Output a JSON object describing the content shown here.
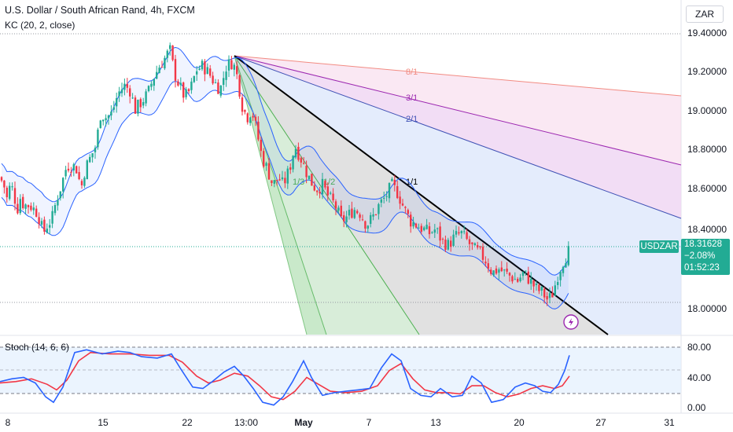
{
  "title": "U.S. Dollar / South African Rand, 4h, FXCM",
  "indicator_label": "KC (20, 2, close)",
  "stoch_label": "Stoch (14, 6, 6)",
  "currency": "ZAR",
  "symbol": "USDZAR",
  "last_price": "18.31628",
  "change": "−2.08%",
  "countdown": "01:52:23",
  "colors": {
    "up": "#22ab94",
    "down": "#f23645",
    "keltner": "#2962ff",
    "stoch_k": "#2962ff",
    "stoch_d": "#f23645",
    "price_tag": "#22ab94",
    "trendline": "#000000"
  },
  "chart_data": [
    {
      "type": "candlestick",
      "title": "U.S. Dollar / South African Rand, 4h, FXCM",
      "x_tick_labels": [
        "8",
        "15",
        "22",
        "13:00",
        "May",
        "7",
        "13",
        "20",
        "27",
        "31"
      ],
      "y_tick_labels": [
        "19.40000",
        "19.20000",
        "19.00000",
        "18.80000",
        "18.60000",
        "18.40000",
        "18.00000"
      ],
      "ylim": [
        17.87,
        19.55
      ],
      "annotations": [
        "8/1",
        "3/1",
        "2/1",
        "1/1",
        "1/2",
        "1/3"
      ],
      "last_value": 18.31628,
      "approx_close_path": [
        [
          0,
          18.66
        ],
        [
          5,
          18.62
        ],
        [
          9,
          18.55
        ],
        [
          13,
          18.62
        ],
        [
          16,
          18.6
        ],
        [
          22,
          18.5
        ],
        [
          26,
          18.56
        ],
        [
          30,
          18.52
        ],
        [
          38,
          18.52
        ],
        [
          43,
          18.5
        ],
        [
          48,
          18.48
        ],
        [
          55,
          18.38
        ],
        [
          60,
          18.42
        ],
        [
          66,
          18.45
        ],
        [
          72,
          18.55
        ],
        [
          78,
          18.62
        ],
        [
          85,
          18.72
        ],
        [
          92,
          18.72
        ],
        [
          98,
          18.7
        ],
        [
          103,
          18.6
        ],
        [
          108,
          18.7
        ],
        [
          115,
          18.76
        ],
        [
          122,
          18.82
        ],
        [
          128,
          18.98
        ],
        [
          135,
          18.96
        ],
        [
          142,
          18.98
        ],
        [
          150,
          19.08
        ],
        [
          158,
          19.12
        ],
        [
          165,
          19.1
        ],
        [
          172,
          19.0
        ],
        [
          180,
          19.04
        ],
        [
          188,
          19.08
        ],
        [
          195,
          19.16
        ],
        [
          203,
          19.22
        ],
        [
          210,
          19.26
        ],
        [
          216,
          19.3
        ],
        [
          222,
          19.18
        ],
        [
          228,
          19.12
        ],
        [
          235,
          19.06
        ],
        [
          242,
          19.1
        ],
        [
          250,
          19.2
        ],
        [
          258,
          19.22
        ],
        [
          266,
          19.18
        ],
        [
          272,
          19.14
        ],
        [
          280,
          19.1
        ],
        [
          288,
          19.22
        ],
        [
          296,
          19.24
        ],
        [
          302,
          19.16
        ],
        [
          308,
          19.02
        ],
        [
          314,
          18.96
        ],
        [
          320,
          19.0
        ],
        [
          326,
          18.9
        ],
        [
          333,
          18.76
        ],
        [
          340,
          18.7
        ],
        [
          347,
          18.62
        ],
        [
          354,
          18.66
        ],
        [
          360,
          18.62
        ],
        [
          368,
          18.7
        ],
        [
          375,
          18.82
        ],
        [
          382,
          18.76
        ],
        [
          388,
          18.7
        ],
        [
          395,
          18.64
        ],
        [
          402,
          18.6
        ],
        [
          410,
          18.62
        ],
        [
          418,
          18.56
        ],
        [
          426,
          18.52
        ],
        [
          434,
          18.44
        ],
        [
          441,
          18.46
        ],
        [
          450,
          18.5
        ],
        [
          458,
          18.48
        ],
        [
          466,
          18.42
        ],
        [
          474,
          18.46
        ],
        [
          482,
          18.52
        ],
        [
          490,
          18.56
        ],
        [
          498,
          18.62
        ],
        [
          506,
          18.58
        ],
        [
          514,
          18.5
        ],
        [
          522,
          18.44
        ],
        [
          530,
          18.42
        ],
        [
          538,
          18.4
        ],
        [
          546,
          18.38
        ],
        [
          554,
          18.4
        ],
        [
          562,
          18.34
        ],
        [
          570,
          18.32
        ],
        [
          578,
          18.36
        ],
        [
          586,
          18.38
        ],
        [
          594,
          18.34
        ],
        [
          602,
          18.3
        ],
        [
          610,
          18.28
        ],
        [
          618,
          18.24
        ],
        [
          626,
          18.18
        ],
        [
          634,
          18.2
        ],
        [
          642,
          18.18
        ],
        [
          650,
          18.16
        ],
        [
          658,
          18.14
        ],
        [
          666,
          18.18
        ],
        [
          674,
          18.14
        ],
        [
          682,
          18.1
        ],
        [
          690,
          18.08
        ],
        [
          697,
          18.04
        ],
        [
          703,
          18.08
        ],
        [
          710,
          18.18
        ],
        [
          716,
          18.24
        ],
        [
          722,
          18.28
        ],
        [
          726,
          18.32
        ]
      ]
    },
    {
      "type": "line",
      "title": "Stoch (14, 6, 6)",
      "y_tick_labels": [
        "80.00",
        "40.00",
        "0.00"
      ],
      "ylim": [
        0,
        100
      ],
      "series": [
        {
          "name": "%K",
          "values": [
            [
              0,
              40
            ],
            [
              15,
              44
            ],
            [
              30,
              46
            ],
            [
              45,
              38
            ],
            [
              58,
              18
            ],
            [
              68,
              10
            ],
            [
              80,
              32
            ],
            [
              95,
              82
            ],
            [
              110,
              86
            ],
            [
              130,
              80
            ],
            [
              150,
              84
            ],
            [
              165,
              82
            ],
            [
              180,
              76
            ],
            [
              200,
              74
            ],
            [
              218,
              80
            ],
            [
              230,
              58
            ],
            [
              245,
              32
            ],
            [
              258,
              30
            ],
            [
              270,
              40
            ],
            [
              285,
              54
            ],
            [
              298,
              62
            ],
            [
              310,
              48
            ],
            [
              322,
              30
            ],
            [
              334,
              10
            ],
            [
              348,
              6
            ],
            [
              360,
              18
            ],
            [
              372,
              40
            ],
            [
              386,
              70
            ],
            [
              396,
              46
            ],
            [
              410,
              20
            ],
            [
              425,
              24
            ],
            [
              440,
              26
            ],
            [
              455,
              28
            ],
            [
              470,
              30
            ],
            [
              485,
              60
            ],
            [
              498,
              80
            ],
            [
              510,
              70
            ],
            [
              522,
              30
            ],
            [
              535,
              20
            ],
            [
              548,
              18
            ],
            [
              560,
              30
            ],
            [
              575,
              18
            ],
            [
              588,
              20
            ],
            [
              600,
              48
            ],
            [
              612,
              38
            ],
            [
              625,
              10
            ],
            [
              640,
              14
            ],
            [
              655,
              32
            ],
            [
              668,
              38
            ],
            [
              680,
              34
            ],
            [
              690,
              26
            ],
            [
              700,
              24
            ],
            [
              710,
              36
            ],
            [
              718,
              56
            ],
            [
              724,
              78
            ]
          ]
        },
        {
          "name": "%D",
          "values": [
            [
              0,
              38
            ],
            [
              20,
              40
            ],
            [
              40,
              44
            ],
            [
              60,
              36
            ],
            [
              72,
              28
            ],
            [
              85,
              42
            ],
            [
              100,
              70
            ],
            [
              115,
              82
            ],
            [
              140,
              80
            ],
            [
              165,
              80
            ],
            [
              190,
              78
            ],
            [
              215,
              78
            ],
            [
              232,
              68
            ],
            [
              250,
              48
            ],
            [
              265,
              38
            ],
            [
              280,
              42
            ],
            [
              298,
              52
            ],
            [
              315,
              48
            ],
            [
              330,
              34
            ],
            [
              345,
              18
            ],
            [
              360,
              14
            ],
            [
              375,
              26
            ],
            [
              390,
              46
            ],
            [
              405,
              36
            ],
            [
              420,
              26
            ],
            [
              440,
              24
            ],
            [
              460,
              26
            ],
            [
              480,
              34
            ],
            [
              495,
              56
            ],
            [
              510,
              66
            ],
            [
              525,
              44
            ],
            [
              540,
              28
            ],
            [
              555,
              24
            ],
            [
              570,
              24
            ],
            [
              585,
              22
            ],
            [
              600,
              34
            ],
            [
              615,
              34
            ],
            [
              630,
              24
            ],
            [
              645,
              18
            ],
            [
              660,
              22
            ],
            [
              675,
              30
            ],
            [
              690,
              34
            ],
            [
              705,
              30
            ],
            [
              715,
              34
            ],
            [
              724,
              48
            ]
          ]
        }
      ]
    }
  ]
}
